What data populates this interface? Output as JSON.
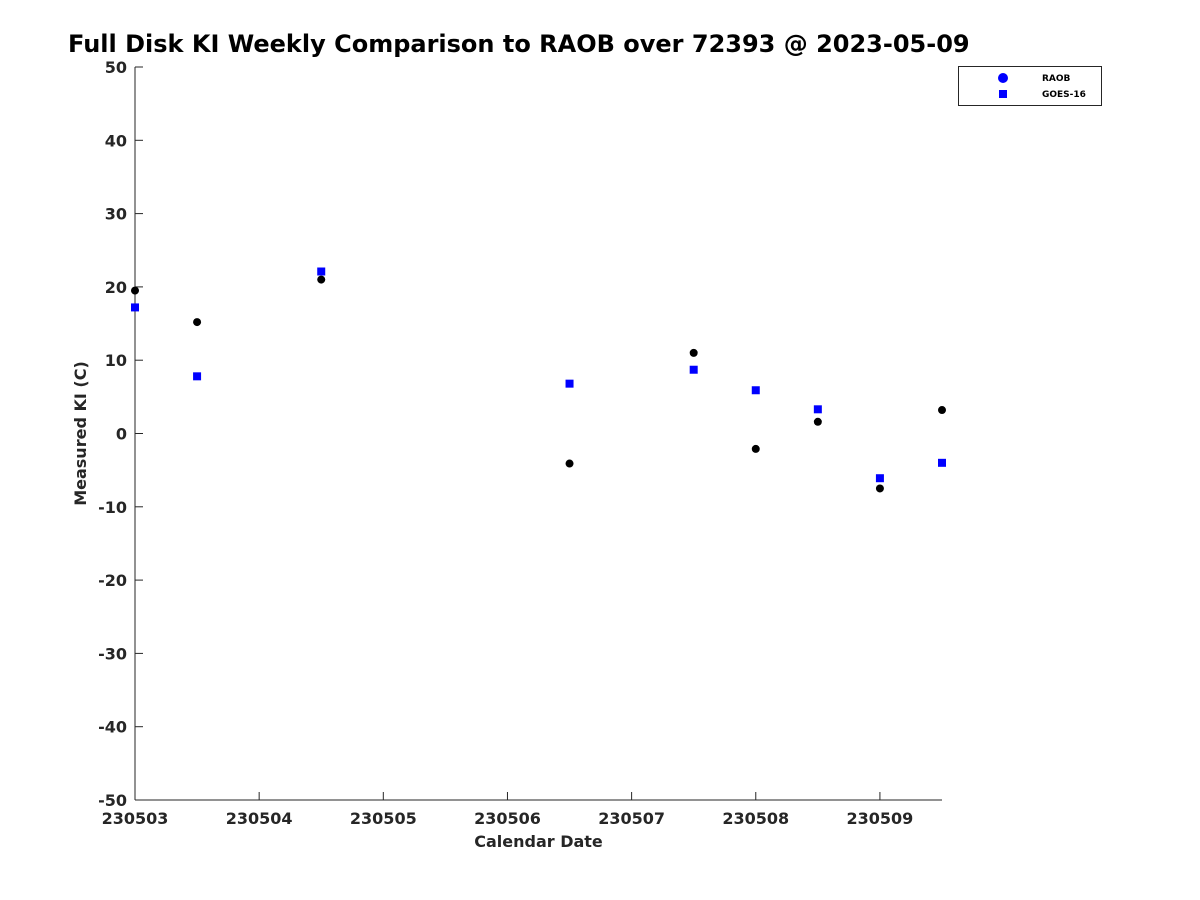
{
  "chart_data": {
    "type": "scatter",
    "title": "Full Disk KI Weekly Comparison to RAOB over 72393 @ 2023-05-09",
    "xlabel": "Calendar Date",
    "ylabel": "Measured KI (C)",
    "xlim": [
      0,
      6.5
    ],
    "ylim": [
      -50,
      50
    ],
    "xticks": [
      {
        "value": 0,
        "label": "230503"
      },
      {
        "value": 1,
        "label": "230504"
      },
      {
        "value": 2,
        "label": "230505"
      },
      {
        "value": 3,
        "label": "230506"
      },
      {
        "value": 4,
        "label": "230507"
      },
      {
        "value": 5,
        "label": "230508"
      },
      {
        "value": 6,
        "label": "230509"
      }
    ],
    "yticks": [
      50,
      40,
      30,
      20,
      10,
      0,
      -10,
      -20,
      -30,
      -40,
      -50
    ],
    "legend_position": "top-right",
    "series": [
      {
        "name": "RAOB",
        "marker": "circle",
        "color": "#000000",
        "legend_color": "#0000ff",
        "points": [
          {
            "x": 0.0,
            "y": 19.5
          },
          {
            "x": 0.5,
            "y": 15.2
          },
          {
            "x": 1.5,
            "y": 21.0
          },
          {
            "x": 3.5,
            "y": -4.1
          },
          {
            "x": 4.5,
            "y": 11.0
          },
          {
            "x": 5.0,
            "y": -2.1
          },
          {
            "x": 5.5,
            "y": 1.6
          },
          {
            "x": 6.0,
            "y": -7.5
          },
          {
            "x": 6.5,
            "y": 3.2
          }
        ]
      },
      {
        "name": "GOES-16",
        "marker": "square",
        "color": "#0000ff",
        "legend_color": "#0000ff",
        "points": [
          {
            "x": 0.0,
            "y": 17.2
          },
          {
            "x": 0.5,
            "y": 7.8
          },
          {
            "x": 1.5,
            "y": 22.1
          },
          {
            "x": 3.5,
            "y": 6.8
          },
          {
            "x": 4.5,
            "y": 8.7
          },
          {
            "x": 5.0,
            "y": 5.9
          },
          {
            "x": 5.5,
            "y": 3.3
          },
          {
            "x": 6.0,
            "y": -6.1
          },
          {
            "x": 6.5,
            "y": -4.0
          }
        ]
      }
    ]
  }
}
